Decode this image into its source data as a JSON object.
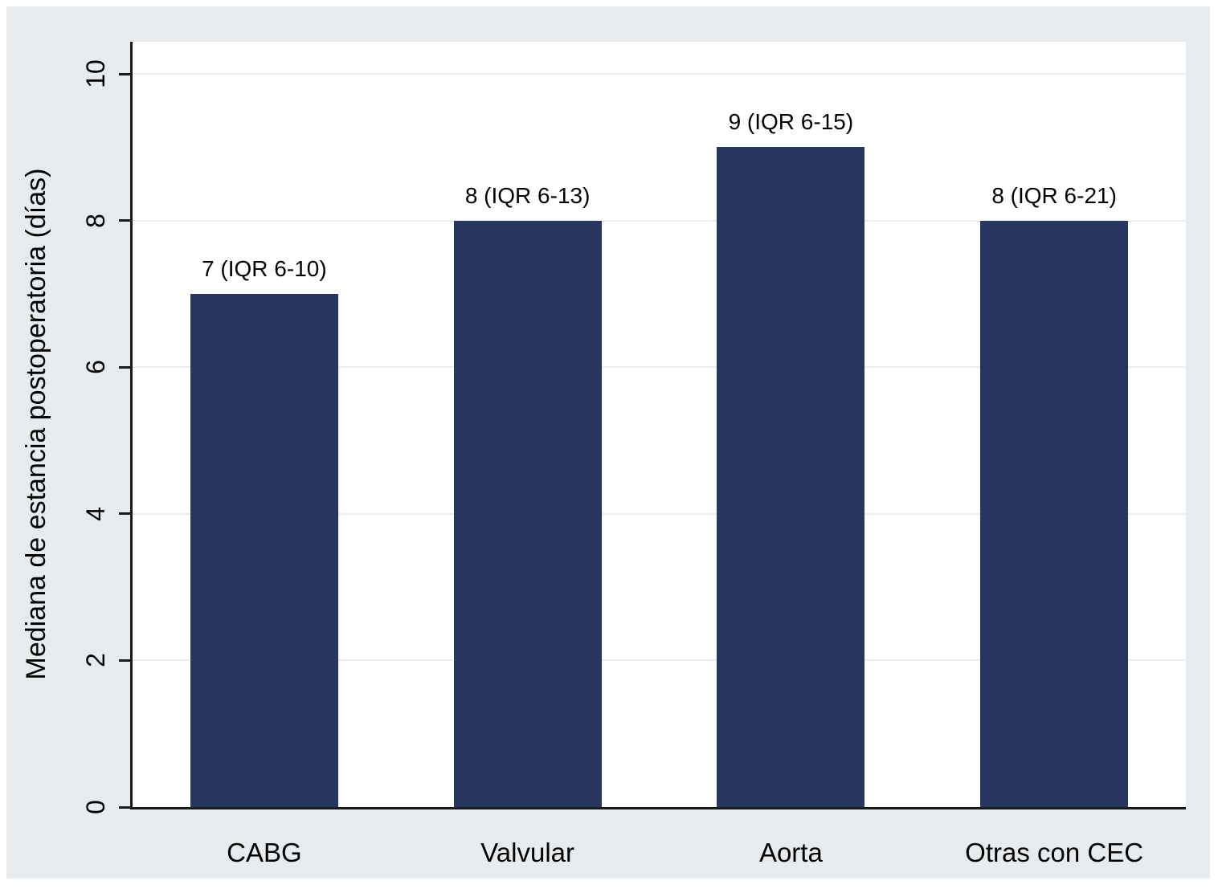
{
  "figure": {
    "background_color": "#e7ebee",
    "page_color": "#ffffff"
  },
  "chart_data": {
    "type": "bar",
    "title": "",
    "xlabel": "",
    "ylabel": "Mediana de estancia postoperatoria (días)",
    "categories": [
      "CABG",
      "Valvular",
      "Aorta",
      "Otras con CEC"
    ],
    "values": [
      7,
      8,
      9,
      8
    ],
    "bar_labels": [
      "7 (IQR 6-10)",
      "8 (IQR 6-13)",
      "9 (IQR 6-15)",
      "8 (IQR 6-21)"
    ],
    "yticks": [
      0,
      2,
      4,
      6,
      8,
      10
    ],
    "ytick_labels": [
      "0",
      "2",
      "4",
      "6",
      "8",
      "10"
    ],
    "ylim": [
      0,
      10.44
    ],
    "grid": true,
    "legend": "none",
    "bar_color": "#27375f",
    "plot_background": "#ffffff",
    "gridline_color": "#eaeef1",
    "axis_color": "#1a1a1a",
    "ytick_label_rotation_deg": -90
  }
}
